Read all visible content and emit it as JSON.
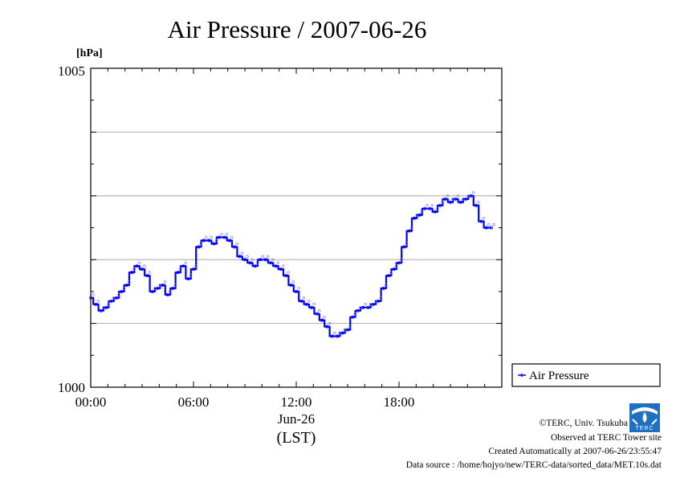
{
  "chart_data": {
    "type": "line",
    "title": "Air Pressure / 2007-06-26",
    "ylabel": "[hPa]",
    "xlabel": "Jun-26",
    "xlabel_sub": "(LST)",
    "ylim": [
      1000,
      1005
    ],
    "xlim": [
      0,
      24
    ],
    "y_ticks": [
      "1000",
      "1005"
    ],
    "y_grid": [
      1001,
      1002,
      1003,
      1004
    ],
    "x_ticks": [
      {
        "x": 0,
        "label": "00:00"
      },
      {
        "x": 6,
        "label": "06:00"
      },
      {
        "x": 12,
        "label": "12:00"
      },
      {
        "x": 18,
        "label": "18:00"
      }
    ],
    "grid": true,
    "legend": {
      "position": "right",
      "entries": [
        "Air Pressure"
      ]
    },
    "series": [
      {
        "name": "Air Pressure",
        "color": "#0000ff",
        "x": [
          0,
          0.3,
          0.6,
          0.9,
          1.2,
          1.5,
          1.8,
          2.1,
          2.4,
          2.7,
          3.0,
          3.3,
          3.6,
          3.9,
          4.2,
          4.5,
          4.8,
          5.1,
          5.4,
          5.7,
          6.0,
          6.3,
          6.6,
          6.9,
          7.2,
          7.5,
          7.8,
          8.1,
          8.4,
          8.7,
          9.0,
          9.3,
          9.6,
          9.9,
          10.2,
          10.5,
          10.8,
          11.1,
          11.4,
          11.7,
          12.0,
          12.3,
          12.6,
          12.9,
          13.2,
          13.5,
          13.8,
          14.1,
          14.4,
          14.7,
          15.0,
          15.3,
          15.6,
          15.9,
          16.2,
          16.5,
          16.8,
          17.1,
          17.4,
          17.7,
          18.0,
          18.3,
          18.6,
          18.9,
          19.2,
          19.5,
          19.8,
          20.1,
          20.4,
          20.7,
          21.0,
          21.3,
          21.6,
          21.9,
          22.2,
          22.5,
          22.8,
          23.1,
          23.4
        ],
        "values": [
          1001.4,
          1001.3,
          1001.2,
          1001.25,
          1001.35,
          1001.4,
          1001.5,
          1001.6,
          1001.8,
          1001.9,
          1001.85,
          1001.75,
          1001.5,
          1001.55,
          1001.6,
          1001.45,
          1001.55,
          1001.8,
          1001.9,
          1001.7,
          1001.85,
          1002.2,
          1002.3,
          1002.3,
          1002.25,
          1002.35,
          1002.35,
          1002.3,
          1002.2,
          1002.05,
          1002.0,
          1001.95,
          1001.9,
          1002.0,
          1002.0,
          1001.95,
          1001.9,
          1001.85,
          1001.75,
          1001.6,
          1001.5,
          1001.35,
          1001.3,
          1001.25,
          1001.15,
          1001.05,
          1000.95,
          1000.8,
          1000.8,
          1000.85,
          1000.9,
          1001.1,
          1001.2,
          1001.25,
          1001.25,
          1001.3,
          1001.35,
          1001.55,
          1001.75,
          1001.85,
          1001.95,
          1002.2,
          1002.45,
          1002.65,
          1002.7,
          1002.8,
          1002.8,
          1002.75,
          1002.85,
          1002.95,
          1002.9,
          1002.95,
          1002.9,
          1002.95,
          1003.0,
          1002.85,
          1002.6,
          1002.5,
          1002.5
        ]
      }
    ]
  },
  "footer": {
    "copyright": "©TERC, Univ. Tsukuba",
    "observed": "Observed at TERC Tower site",
    "created": "Created Automatically at 2007-06-26/23:55:47",
    "source": "Data source : /home/hojyo/new/TERC-data/sorted_data/MET.10s.dat",
    "logo_text": "TERC"
  }
}
